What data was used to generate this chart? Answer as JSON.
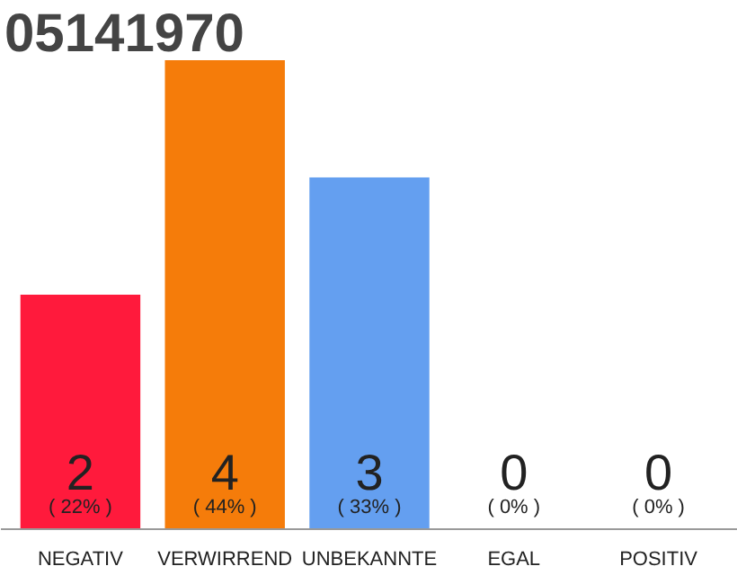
{
  "chart_data": {
    "type": "bar",
    "title": "05141970",
    "categories": [
      "NEGATIV",
      "VERWIRREND",
      "UNBEKANNTE",
      "EGAL",
      "POSITIV"
    ],
    "values": [
      2,
      4,
      3,
      0,
      0
    ],
    "colors": [
      "#ff1a3c",
      "#f57c0a",
      "#649ff0",
      "#cccccc",
      "#cccccc"
    ],
    "ylim": [
      0,
      4
    ],
    "tick_labels": "x",
    "grid": false,
    "data_labels": true,
    "annotations": [
      "( 22% )",
      "( 44% )",
      "( 33% )",
      "( 0% )",
      "( 0% )"
    ]
  }
}
